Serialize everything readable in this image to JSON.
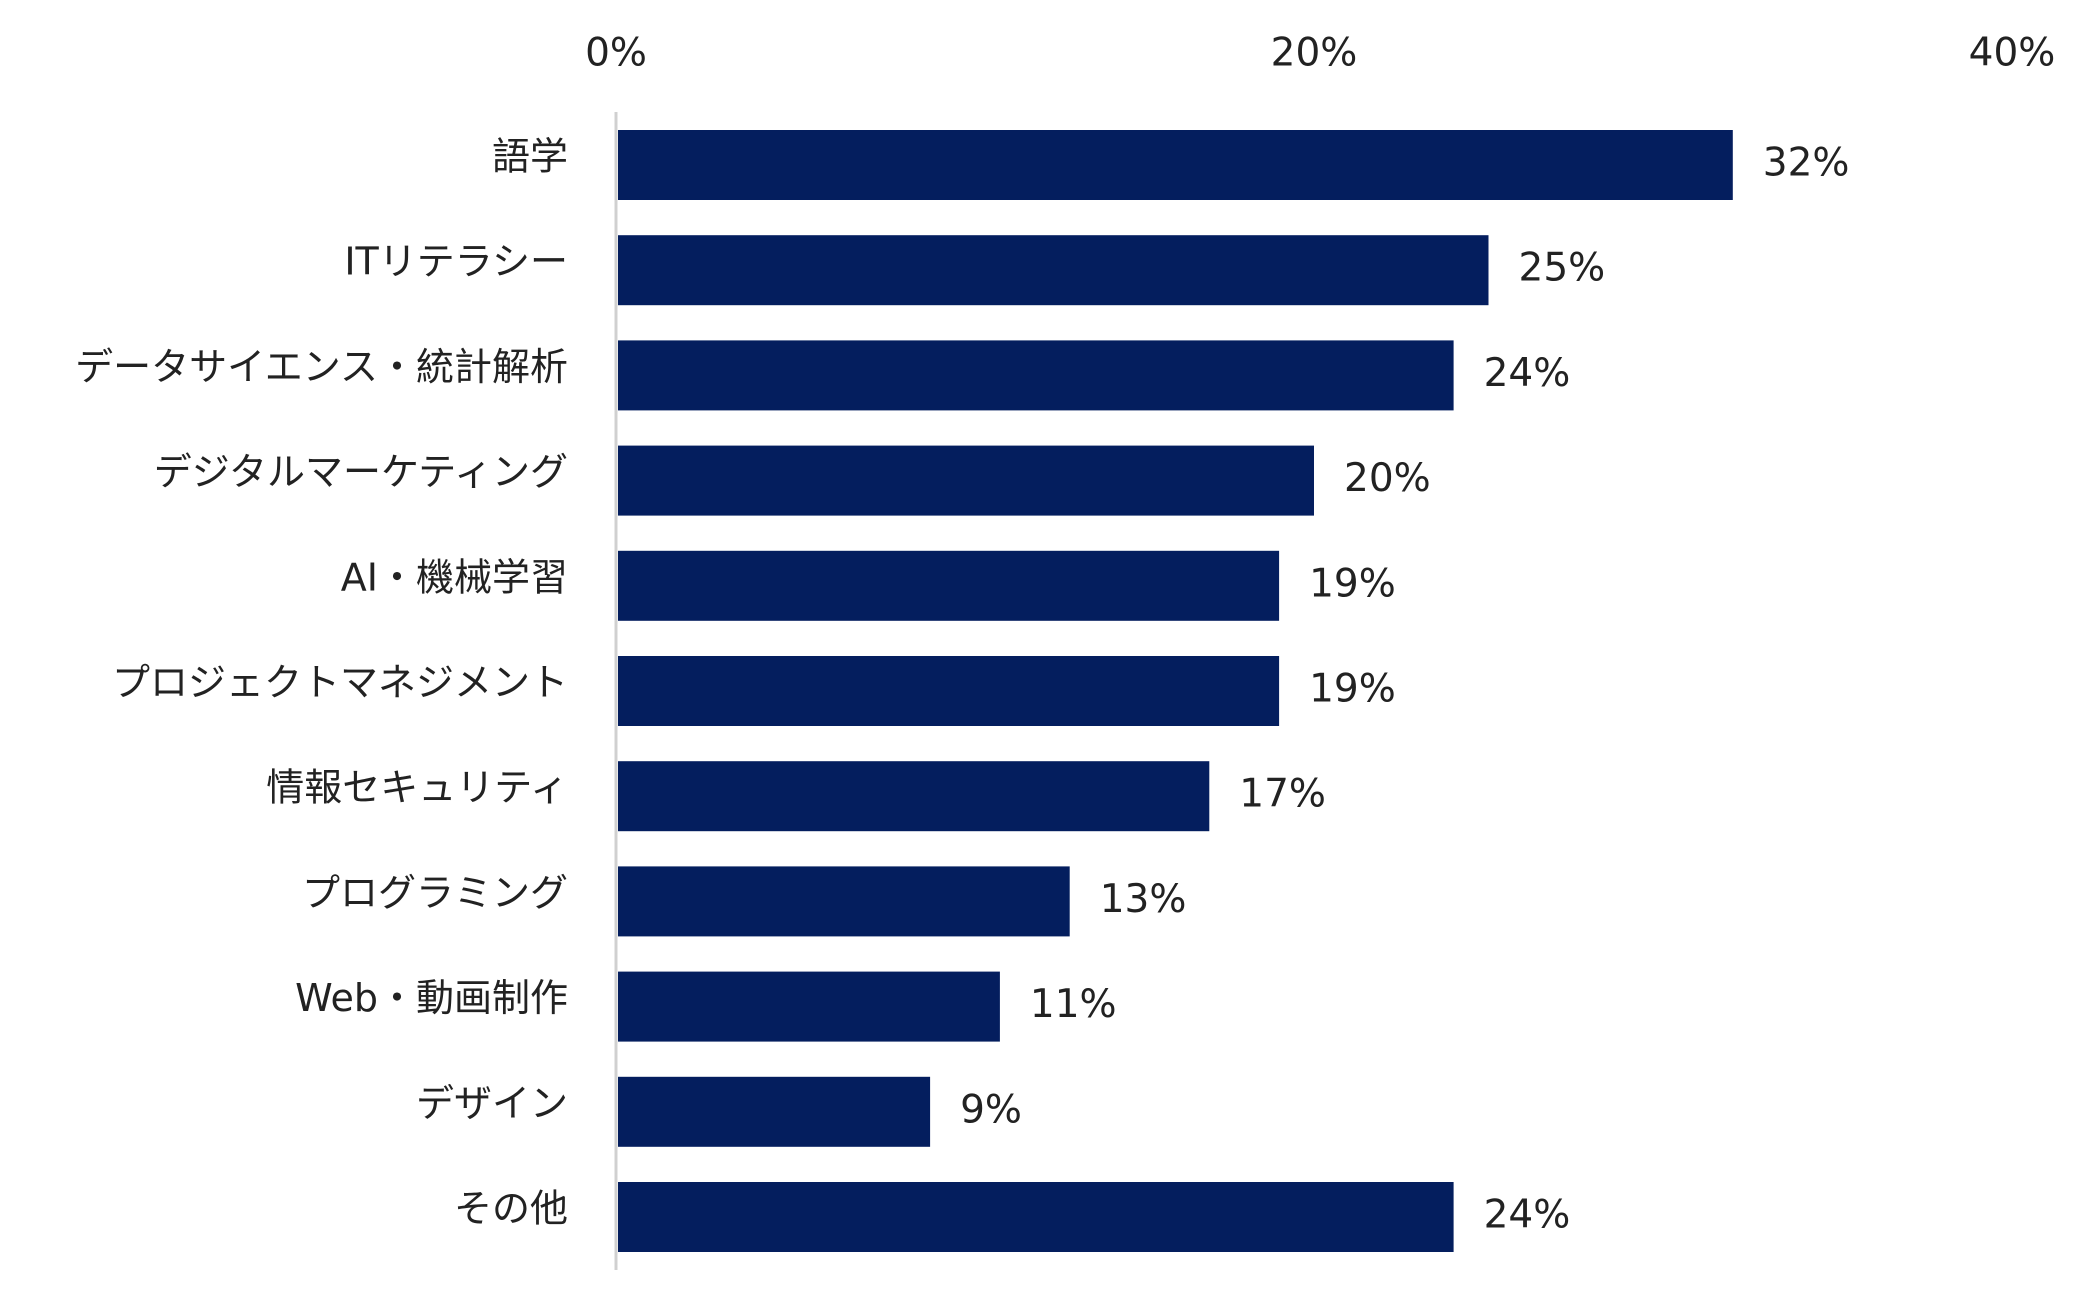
{
  "chart_data": {
    "type": "bar",
    "orientation": "horizontal",
    "categories": [
      "語学",
      "ITリテラシー",
      "データサイエンス・統計解析",
      "デジタルマーケティング",
      "AI・機械学習",
      "プロジェクトマネジメント",
      "情報セキュリティ",
      "プログラミング",
      "Web・動画制作",
      "デザイン",
      "その他"
    ],
    "values": [
      32,
      25,
      24,
      20,
      19,
      19,
      17,
      13,
      11,
      9,
      24
    ],
    "value_labels": [
      "32%",
      "25%",
      "24%",
      "20%",
      "19%",
      "19%",
      "17%",
      "13%",
      "11%",
      "9%",
      "24%"
    ],
    "title": "",
    "xlabel": "",
    "ylabel": "",
    "xlim": [
      0,
      40
    ],
    "x_ticks": [
      0,
      20,
      40
    ],
    "x_tick_labels": [
      "0%",
      "20%",
      "40%"
    ],
    "x_axis_position": "top",
    "grid": false,
    "legend": "none",
    "bar_color": "#041e5e",
    "axis_color": "#d0d0d0"
  }
}
